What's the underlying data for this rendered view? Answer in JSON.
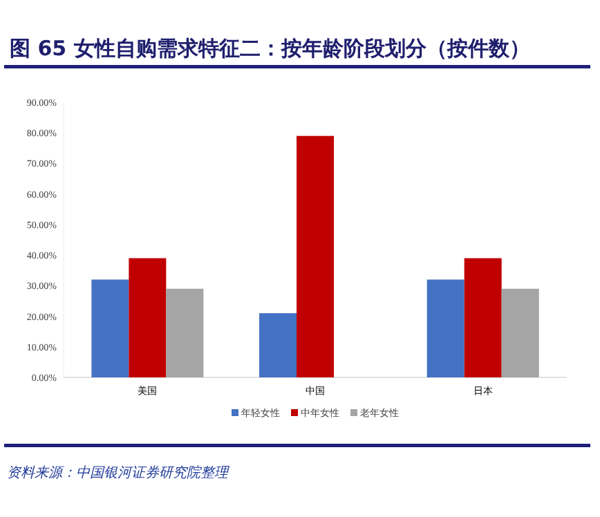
{
  "chart_data": {
    "type": "bar",
    "title": "图 65 女性自购需求特征二：按年龄阶段划分（按件数）",
    "categories": [
      "美国",
      "中国",
      "日本"
    ],
    "series": [
      {
        "name": "年轻女性",
        "color": "#4472c4",
        "values": [
          32,
          21,
          32
        ]
      },
      {
        "name": "中年女性",
        "color": "#c00000",
        "values": [
          39,
          79,
          39
        ]
      },
      {
        "name": "老年女性",
        "color": "#a5a5a5",
        "values": [
          29,
          null,
          29
        ]
      }
    ],
    "ylim": [
      0,
      90
    ],
    "yticks": [
      {
        "value": 0,
        "label": "0.00%"
      },
      {
        "value": 10,
        "label": "10.00%"
      },
      {
        "value": 20,
        "label": "20.00%"
      },
      {
        "value": 30,
        "label": "30.00%"
      },
      {
        "value": 40,
        "label": "40.00%"
      },
      {
        "value": 50,
        "label": "50.00%"
      },
      {
        "value": 60,
        "label": "60.00%"
      },
      {
        "value": 70,
        "label": "70.00%"
      },
      {
        "value": 80,
        "label": "80.00%"
      },
      {
        "value": 90,
        "label": "90.00%"
      }
    ],
    "legend": "bottom",
    "grid": false,
    "annotations": [
      "资料来源：中国银河证券研究院整理"
    ]
  }
}
